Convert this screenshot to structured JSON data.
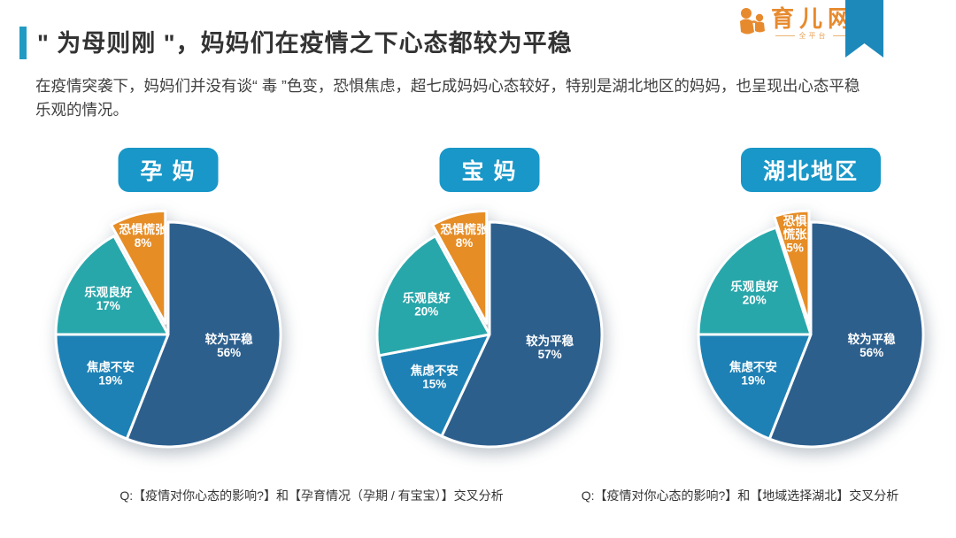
{
  "header": {
    "title": "\" 为母则刚 \"，妈妈们在疫情之下心态都较为平稳",
    "subtitle": "在疫情突袭下，妈妈们并没有谈“ 毒 ”色变，恐惧焦虑，超七成妈妈心态较好，特别是湖北地区的妈妈，也呈现出心态平稳乐观的情况。",
    "accent_color": "#219bc3"
  },
  "logo": {
    "name": "育儿网",
    "subtext": "全平台",
    "color": "#e78a2e",
    "icon": "parent-child-icon"
  },
  "ribbon_color": "#1d89bb",
  "chip_color": "#1897c8",
  "chart_data": [
    {
      "type": "pie",
      "title": "孕 妈",
      "labels": [
        "较为平稳",
        "焦虑不安",
        "乐观良好",
        "恐惧慌张"
      ],
      "values": [
        56,
        19,
        17,
        8
      ],
      "colors": [
        "#2d5f8d",
        "#1e81b5",
        "#28a7ab",
        "#e68d26"
      ],
      "start_angle_deg": 0,
      "direction": "clockwise",
      "exploded_index": 3,
      "legend": "none",
      "data_labels": "name + percent inside slices, white bold"
    },
    {
      "type": "pie",
      "title": "宝 妈",
      "labels": [
        "较为平稳",
        "焦虑不安",
        "乐观良好",
        "恐惧慌张"
      ],
      "values": [
        57,
        15,
        20,
        8
      ],
      "colors": [
        "#2d5f8d",
        "#1e81b5",
        "#28a7ab",
        "#e68d26"
      ],
      "start_angle_deg": 0,
      "direction": "clockwise",
      "exploded_index": 3,
      "legend": "none",
      "data_labels": "name + percent inside slices, white bold"
    },
    {
      "type": "pie",
      "title": "湖北地区",
      "labels": [
        "较为平稳",
        "焦虑不安",
        "乐观良好",
        "恐惧慌张"
      ],
      "values": [
        56,
        19,
        20,
        5
      ],
      "colors": [
        "#2d5f8d",
        "#1e81b5",
        "#28a7ab",
        "#e68d26"
      ],
      "start_angle_deg": 0,
      "direction": "clockwise",
      "exploded_index": 3,
      "legend": "none",
      "data_labels": "name + percent inside slices, white bold"
    }
  ],
  "captions": [
    "Q:【疫情对你心态的影响?】和【孕育情况（孕期 / 有宝宝）】交叉分析",
    "Q:【疫情对你心态的影响?】和【地域选择湖北】交叉分析"
  ]
}
